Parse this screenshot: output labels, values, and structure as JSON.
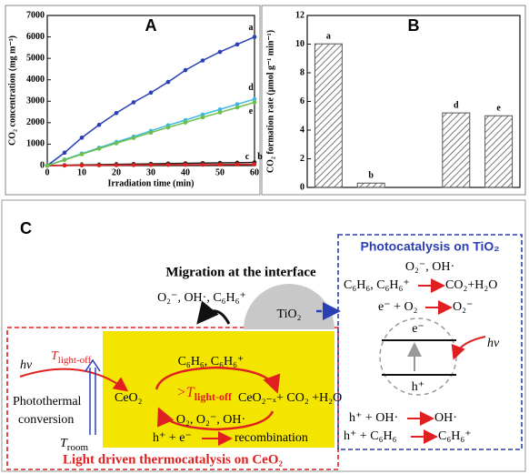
{
  "chart_data": [
    {
      "type": "line",
      "title": "A",
      "xlabel": "Irradiation time (min)",
      "ylabel": "CO₂ concentration (mg m⁻³)",
      "x": [
        0,
        5,
        10,
        15,
        20,
        25,
        30,
        35,
        40,
        45,
        50,
        55,
        60
      ],
      "series": [
        {
          "name": "a",
          "color": "#2a3fb5",
          "values": [
            0,
            600,
            1300,
            1900,
            2450,
            2950,
            3400,
            3900,
            4450,
            4900,
            5300,
            5650,
            6000
          ]
        },
        {
          "name": "b",
          "color": "#222222",
          "values": [
            0,
            15,
            30,
            45,
            60,
            70,
            80,
            95,
            105,
            115,
            125,
            135,
            150
          ]
        },
        {
          "name": "c",
          "color": "#e02020",
          "values": [
            0,
            5,
            10,
            15,
            20,
            25,
            30,
            35,
            40,
            45,
            50,
            55,
            60
          ]
        },
        {
          "name": "d",
          "color": "#3fb8e0",
          "values": [
            0,
            280,
            560,
            830,
            1100,
            1350,
            1620,
            1880,
            2120,
            2380,
            2620,
            2860,
            3100
          ]
        },
        {
          "name": "e",
          "color": "#6cc04a",
          "values": [
            0,
            260,
            530,
            790,
            1040,
            1290,
            1540,
            1780,
            2010,
            2250,
            2480,
            2710,
            2950
          ]
        }
      ],
      "xlim": [
        0,
        60
      ],
      "xticks": [
        0,
        10,
        20,
        30,
        40,
        50,
        60
      ],
      "ylim": [
        0,
        7000
      ],
      "yticks": [
        0,
        1000,
        2000,
        3000,
        4000,
        5000,
        6000,
        7000
      ],
      "grid": false
    },
    {
      "type": "bar",
      "title": "B",
      "ylabel": "CO₂ formation rate (μmol g⁻¹ min⁻¹)",
      "categories": [
        "a",
        "b",
        null,
        "d",
        "e"
      ],
      "values": [
        10.02,
        0.3,
        null,
        5.2,
        5.0
      ],
      "color": "#555555",
      "ylim": [
        0,
        12
      ],
      "yticks": [
        0,
        2,
        4,
        6,
        8,
        10,
        12
      ],
      "grid": false
    }
  ],
  "diagram": {
    "panel_label": "C",
    "migration": "Migration at the interface",
    "interface_species": "O₂⁻, OH·, C₆H₆⁺",
    "tio2": "TiO₂",
    "hv_left": "hv",
    "t_lightoff": {
      "main": "T",
      "sub": "light-off"
    },
    "photothermal": [
      "Photothermal",
      "conversion"
    ],
    "t_room": {
      "main": "T",
      "sub": "room"
    },
    "ceo2_reactants": "C₆H₆, C₆H₆⁺",
    "ceo2": "CeO₂",
    "gt_lightoff": {
      "main": ">T",
      "sub": "light-off"
    },
    "ceo2_products": "CeO₂₋ₓ+ CO₂ +H₂O",
    "ceo2_oxygen": "O₂, O₂⁻, OH·",
    "recomb_left": "h⁺ + e⁻",
    "recomb_right": "recombination",
    "ceo2_title": "Light driven thermocatalysis on CeO₂",
    "tio2_box": {
      "title": "Photocatalysis on TiO₂",
      "radicals": "O₂⁻, OH·",
      "r1": [
        "C₆H₆, C₆H₆⁺",
        "CO₂+H₂O"
      ],
      "r2": [
        "e⁻ + O₂",
        "O₂⁻"
      ],
      "electron": "e⁻",
      "hole": "h⁺",
      "hv": "hv",
      "r3": [
        "h⁺ + OH·",
        "OH·"
      ],
      "r4": [
        "h⁺ + C₆H₆",
        "C₆H₆⁺"
      ]
    }
  }
}
